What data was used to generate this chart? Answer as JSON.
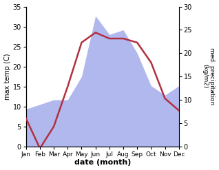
{
  "months": [
    "Jan",
    "Feb",
    "Mar",
    "Apr",
    "May",
    "Jun",
    "Jul",
    "Aug",
    "Sep",
    "Oct",
    "Nov",
    "Dec"
  ],
  "temperature": [
    7,
    -0.5,
    5,
    15,
    26,
    28.5,
    27,
    27,
    26,
    21,
    12,
    9
  ],
  "precipitation": [
    8,
    9,
    10,
    10,
    15,
    28,
    24,
    25,
    20,
    13,
    11,
    13
  ],
  "temp_color": "#b03040",
  "precip_color": "#b0b8ee",
  "ylabel_left": "max temp (C)",
  "ylabel_right": "med. precipitation\n(kg/m2)",
  "xlabel": "date (month)",
  "ylim_left": [
    0,
    35
  ],
  "ylim_right": [
    0,
    30
  ],
  "bg_color": "#ffffff"
}
